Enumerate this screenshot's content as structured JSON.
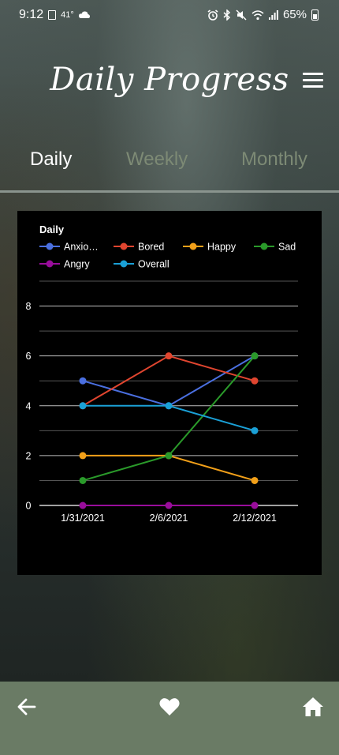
{
  "status_bar": {
    "time": "9:12",
    "temperature": "41°",
    "battery": "65%",
    "icons": [
      "notification-icon",
      "cloud-icon",
      "alarm-icon",
      "bluetooth-icon",
      "mute-icon",
      "wifi-icon",
      "signal-icon",
      "battery-icon"
    ]
  },
  "header": {
    "title": "Daily Progress",
    "menu_icon": "hamburger-menu-icon"
  },
  "tabs": [
    {
      "label": "Daily",
      "active": true
    },
    {
      "label": "Weekly",
      "active": false
    },
    {
      "label": "Monthly",
      "active": false
    }
  ],
  "colors": {
    "active_tab": "#ffffff",
    "inactive_tab": "#7d8a75",
    "bottom_bar": "#6a7b65",
    "chart_background": "#000000"
  },
  "chart_data": {
    "type": "line",
    "title": "Daily",
    "x": [
      "1/31/2021",
      "2/6/2021",
      "2/12/2021"
    ],
    "ylim": [
      0,
      9
    ],
    "yticks": [
      "0",
      "2",
      "4",
      "6",
      "8"
    ],
    "grid": true,
    "legend_position": "top-left",
    "series": [
      {
        "name": "Anxio…",
        "color": "#4a6fe0",
        "values": [
          5,
          4,
          6
        ]
      },
      {
        "name": "Bored",
        "color": "#e0452f",
        "values": [
          4,
          6,
          5
        ]
      },
      {
        "name": "Happy",
        "color": "#f2a019",
        "values": [
          2,
          2,
          1
        ]
      },
      {
        "name": "Sad",
        "color": "#2a9a2a",
        "values": [
          1,
          2,
          6
        ]
      },
      {
        "name": "Angry",
        "color": "#990d9b",
        "values": [
          0,
          0,
          0
        ]
      },
      {
        "name": "Overall",
        "color": "#1aa0d6",
        "values": [
          4,
          4,
          3
        ]
      }
    ]
  },
  "bottom_nav": {
    "back_icon": "back-arrow-icon",
    "favorite_icon": "heart-icon",
    "home_icon": "home-icon"
  }
}
